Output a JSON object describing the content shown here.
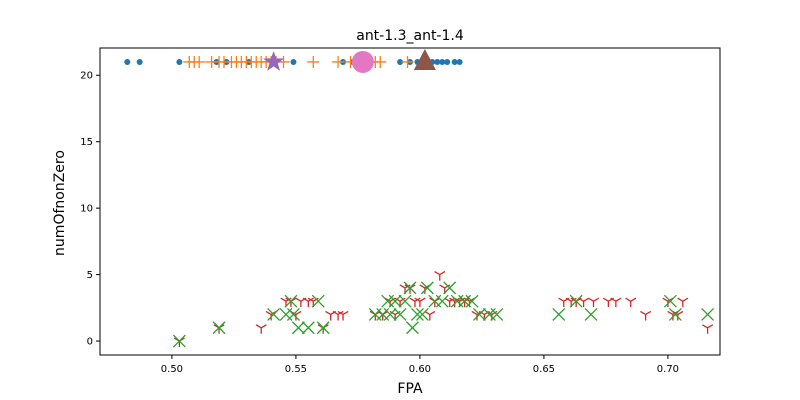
{
  "chart_data": {
    "type": "scatter",
    "title": "ant-1.3_ant-1.4",
    "xlabel": "FPA",
    "ylabel": "numOfnonZero",
    "xlim": [
      0.471,
      0.721
    ],
    "ylim": [
      -1.05,
      22.05
    ],
    "xticks": [
      0.5,
      0.55,
      0.6,
      0.65,
      0.7
    ],
    "xtick_labels": [
      "0.50",
      "0.55",
      "0.60",
      "0.65",
      "0.70"
    ],
    "yticks": [
      0,
      5,
      10,
      15,
      20
    ],
    "ytick_labels": [
      "0",
      "5",
      "10",
      "15",
      "20"
    ],
    "grid": false,
    "series": [
      {
        "marker": "dot",
        "color": "#1f77b4",
        "points": [
          [
            0.482,
            21
          ],
          [
            0.487,
            21
          ],
          [
            0.503,
            21
          ],
          [
            0.518,
            21
          ],
          [
            0.522,
            21
          ],
          [
            0.531,
            21
          ],
          [
            0.549,
            21
          ],
          [
            0.569,
            21
          ],
          [
            0.573,
            21
          ],
          [
            0.592,
            21
          ],
          [
            0.596,
            21
          ],
          [
            0.599,
            21
          ],
          [
            0.601,
            21
          ],
          [
            0.603,
            21
          ],
          [
            0.605,
            21
          ],
          [
            0.607,
            21
          ],
          [
            0.609,
            21
          ],
          [
            0.611,
            21
          ],
          [
            0.614,
            21
          ],
          [
            0.616,
            21
          ]
        ]
      },
      {
        "marker": "plus",
        "color": "#ff7f0e",
        "points": [
          [
            0.507,
            21
          ],
          [
            0.509,
            21
          ],
          [
            0.511,
            21
          ],
          [
            0.516,
            21
          ],
          [
            0.519,
            21
          ],
          [
            0.521,
            21
          ],
          [
            0.524,
            21
          ],
          [
            0.526,
            21
          ],
          [
            0.528,
            21
          ],
          [
            0.53,
            21
          ],
          [
            0.532,
            21
          ],
          [
            0.534,
            21
          ],
          [
            0.536,
            21
          ],
          [
            0.538,
            21
          ],
          [
            0.54,
            21
          ],
          [
            0.542,
            21
          ],
          [
            0.545,
            21
          ],
          [
            0.557,
            21
          ],
          [
            0.567,
            21
          ],
          [
            0.572,
            21
          ],
          [
            0.58,
            21
          ],
          [
            0.582,
            21
          ],
          [
            0.584,
            21
          ],
          [
            0.595,
            21
          ]
        ]
      },
      {
        "marker": "tri_down",
        "color": "#d62728",
        "points": [
          [
            0.503,
            0
          ],
          [
            0.519,
            1
          ],
          [
            0.536,
            1
          ],
          [
            0.54,
            2
          ],
          [
            0.546,
            3
          ],
          [
            0.548,
            3
          ],
          [
            0.55,
            2
          ],
          [
            0.552,
            3
          ],
          [
            0.555,
            3
          ],
          [
            0.557,
            3
          ],
          [
            0.561,
            1
          ],
          [
            0.564,
            2
          ],
          [
            0.567,
            2
          ],
          [
            0.569,
            2
          ],
          [
            0.582,
            2
          ],
          [
            0.585,
            2
          ],
          [
            0.588,
            3
          ],
          [
            0.59,
            2
          ],
          [
            0.592,
            3
          ],
          [
            0.594,
            4
          ],
          [
            0.596,
            4
          ],
          [
            0.598,
            3
          ],
          [
            0.6,
            3
          ],
          [
            0.602,
            4
          ],
          [
            0.604,
            2
          ],
          [
            0.606,
            3
          ],
          [
            0.608,
            5
          ],
          [
            0.61,
            4
          ],
          [
            0.612,
            3
          ],
          [
            0.614,
            3
          ],
          [
            0.616,
            3
          ],
          [
            0.618,
            3
          ],
          [
            0.62,
            3
          ],
          [
            0.623,
            2
          ],
          [
            0.626,
            2
          ],
          [
            0.629,
            2
          ],
          [
            0.658,
            3
          ],
          [
            0.661,
            3
          ],
          [
            0.663,
            3
          ],
          [
            0.666,
            3
          ],
          [
            0.67,
            3
          ],
          [
            0.676,
            3
          ],
          [
            0.679,
            3
          ],
          [
            0.685,
            3
          ],
          [
            0.691,
            2
          ],
          [
            0.7,
            3
          ],
          [
            0.702,
            2
          ],
          [
            0.704,
            2
          ],
          [
            0.706,
            3
          ],
          [
            0.716,
            1
          ]
        ]
      },
      {
        "marker": "x",
        "color": "#2ca02c",
        "points": [
          [
            0.503,
            0
          ],
          [
            0.519,
            1
          ],
          [
            0.541,
            2
          ],
          [
            0.546,
            2
          ],
          [
            0.548,
            3
          ],
          [
            0.549,
            2
          ],
          [
            0.551,
            1
          ],
          [
            0.555,
            1
          ],
          [
            0.559,
            3
          ],
          [
            0.561,
            1
          ],
          [
            0.582,
            2
          ],
          [
            0.585,
            2
          ],
          [
            0.587,
            3
          ],
          [
            0.588,
            2
          ],
          [
            0.59,
            3
          ],
          [
            0.592,
            2
          ],
          [
            0.594,
            3
          ],
          [
            0.596,
            4
          ],
          [
            0.597,
            1
          ],
          [
            0.599,
            2
          ],
          [
            0.601,
            2
          ],
          [
            0.603,
            4
          ],
          [
            0.606,
            3
          ],
          [
            0.609,
            3
          ],
          [
            0.612,
            4
          ],
          [
            0.615,
            3
          ],
          [
            0.618,
            3
          ],
          [
            0.621,
            3
          ],
          [
            0.624,
            2
          ],
          [
            0.628,
            2
          ],
          [
            0.631,
            2
          ],
          [
            0.656,
            2
          ],
          [
            0.663,
            3
          ],
          [
            0.669,
            2
          ],
          [
            0.701,
            3
          ],
          [
            0.703,
            2
          ],
          [
            0.716,
            2
          ]
        ]
      },
      {
        "marker": "star",
        "color": "#9467bd",
        "size": "large",
        "points": [
          [
            0.541,
            21
          ]
        ]
      },
      {
        "marker": "circle",
        "color": "#e377c2",
        "size": "large",
        "points": [
          [
            0.577,
            21
          ]
        ]
      },
      {
        "marker": "triangle",
        "color": "#8c564b",
        "size": "large",
        "points": [
          [
            0.602,
            21
          ]
        ]
      }
    ]
  }
}
